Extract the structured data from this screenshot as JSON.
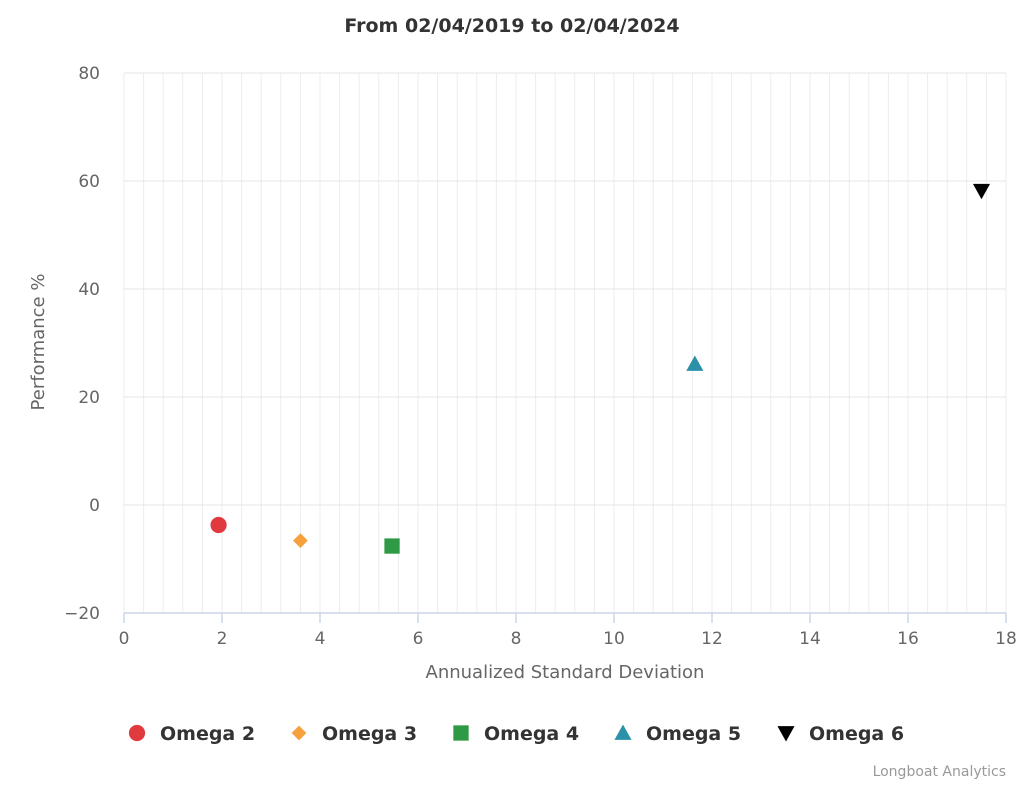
{
  "chart_data": {
    "type": "scatter",
    "title": "From 02/04/2019 to 02/04/2024",
    "xlabel": "Annualized Standard Deviation",
    "ylabel": "Performance %",
    "xlim": [
      0,
      18
    ],
    "ylim": [
      -20,
      80
    ],
    "x_ticks": [
      0,
      2,
      4,
      6,
      8,
      10,
      12,
      14,
      16,
      18
    ],
    "y_ticks": [
      -20,
      0,
      20,
      40,
      60,
      80
    ],
    "x_tick_labels": [
      "0",
      "2",
      "4",
      "6",
      "8",
      "10",
      "12",
      "14",
      "16",
      "18"
    ],
    "y_tick_labels": [
      "−20",
      "0",
      "20",
      "40",
      "60",
      "80"
    ],
    "grid": true,
    "legend_position": "bottom",
    "series": [
      {
        "name": "Omega 2",
        "marker": "circle",
        "color": "#e0393e",
        "points": [
          {
            "x": 1.93,
            "y": -3.7
          }
        ]
      },
      {
        "name": "Omega 3",
        "marker": "diamond",
        "color": "#f7a03e",
        "points": [
          {
            "x": 3.6,
            "y": -6.6
          }
        ]
      },
      {
        "name": "Omega 4",
        "marker": "square",
        "color": "#2e9a45",
        "points": [
          {
            "x": 5.47,
            "y": -7.6
          }
        ]
      },
      {
        "name": "Omega 5",
        "marker": "triangle",
        "color": "#2b91a8",
        "points": [
          {
            "x": 11.65,
            "y": 26.1
          }
        ]
      },
      {
        "name": "Omega 6",
        "marker": "triangle-down",
        "color": "#000000",
        "points": [
          {
            "x": 17.5,
            "y": 58.2
          }
        ]
      }
    ]
  },
  "credit": "Longboat Analytics"
}
